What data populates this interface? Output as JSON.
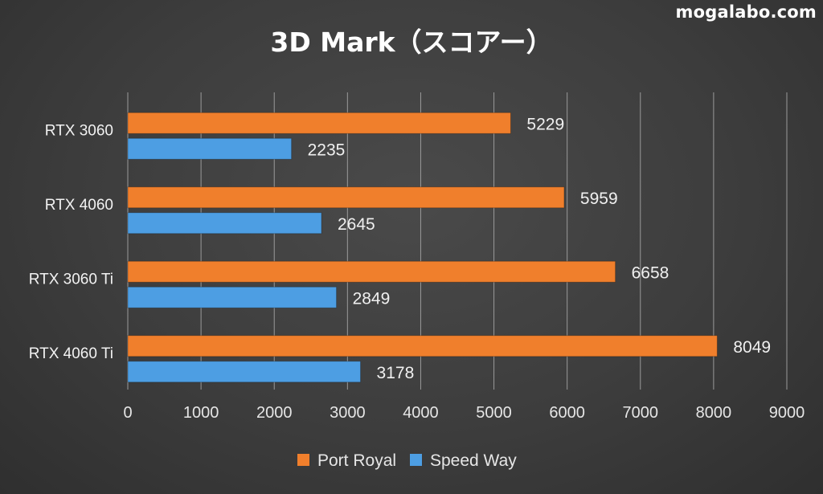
{
  "watermark": "mogalabo.com",
  "colors": {
    "port_royal": "#f07f2c",
    "speed_way": "#4d9ee3",
    "gridline": "#9a9a9a",
    "text": "#e6e6e6"
  },
  "chart_data": {
    "type": "bar",
    "orientation": "horizontal",
    "title": "3D Mark（スコアー）",
    "categories": [
      "RTX 3060",
      "RTX 4060",
      "RTX 3060 Ti",
      "RTX 4060 Ti"
    ],
    "series": [
      {
        "name": "Port Royal",
        "color": "#f07f2c",
        "values": [
          5229,
          5959,
          6658,
          8049
        ]
      },
      {
        "name": "Speed Way",
        "color": "#4d9ee3",
        "values": [
          2235,
          2645,
          2849,
          3178
        ]
      }
    ],
    "xlim": [
      0,
      9000
    ],
    "xticks": [
      0,
      1000,
      2000,
      3000,
      4000,
      5000,
      6000,
      7000,
      8000,
      9000
    ],
    "xlabel": "",
    "ylabel": "",
    "grid": "vertical",
    "legend": "bottom-center"
  }
}
